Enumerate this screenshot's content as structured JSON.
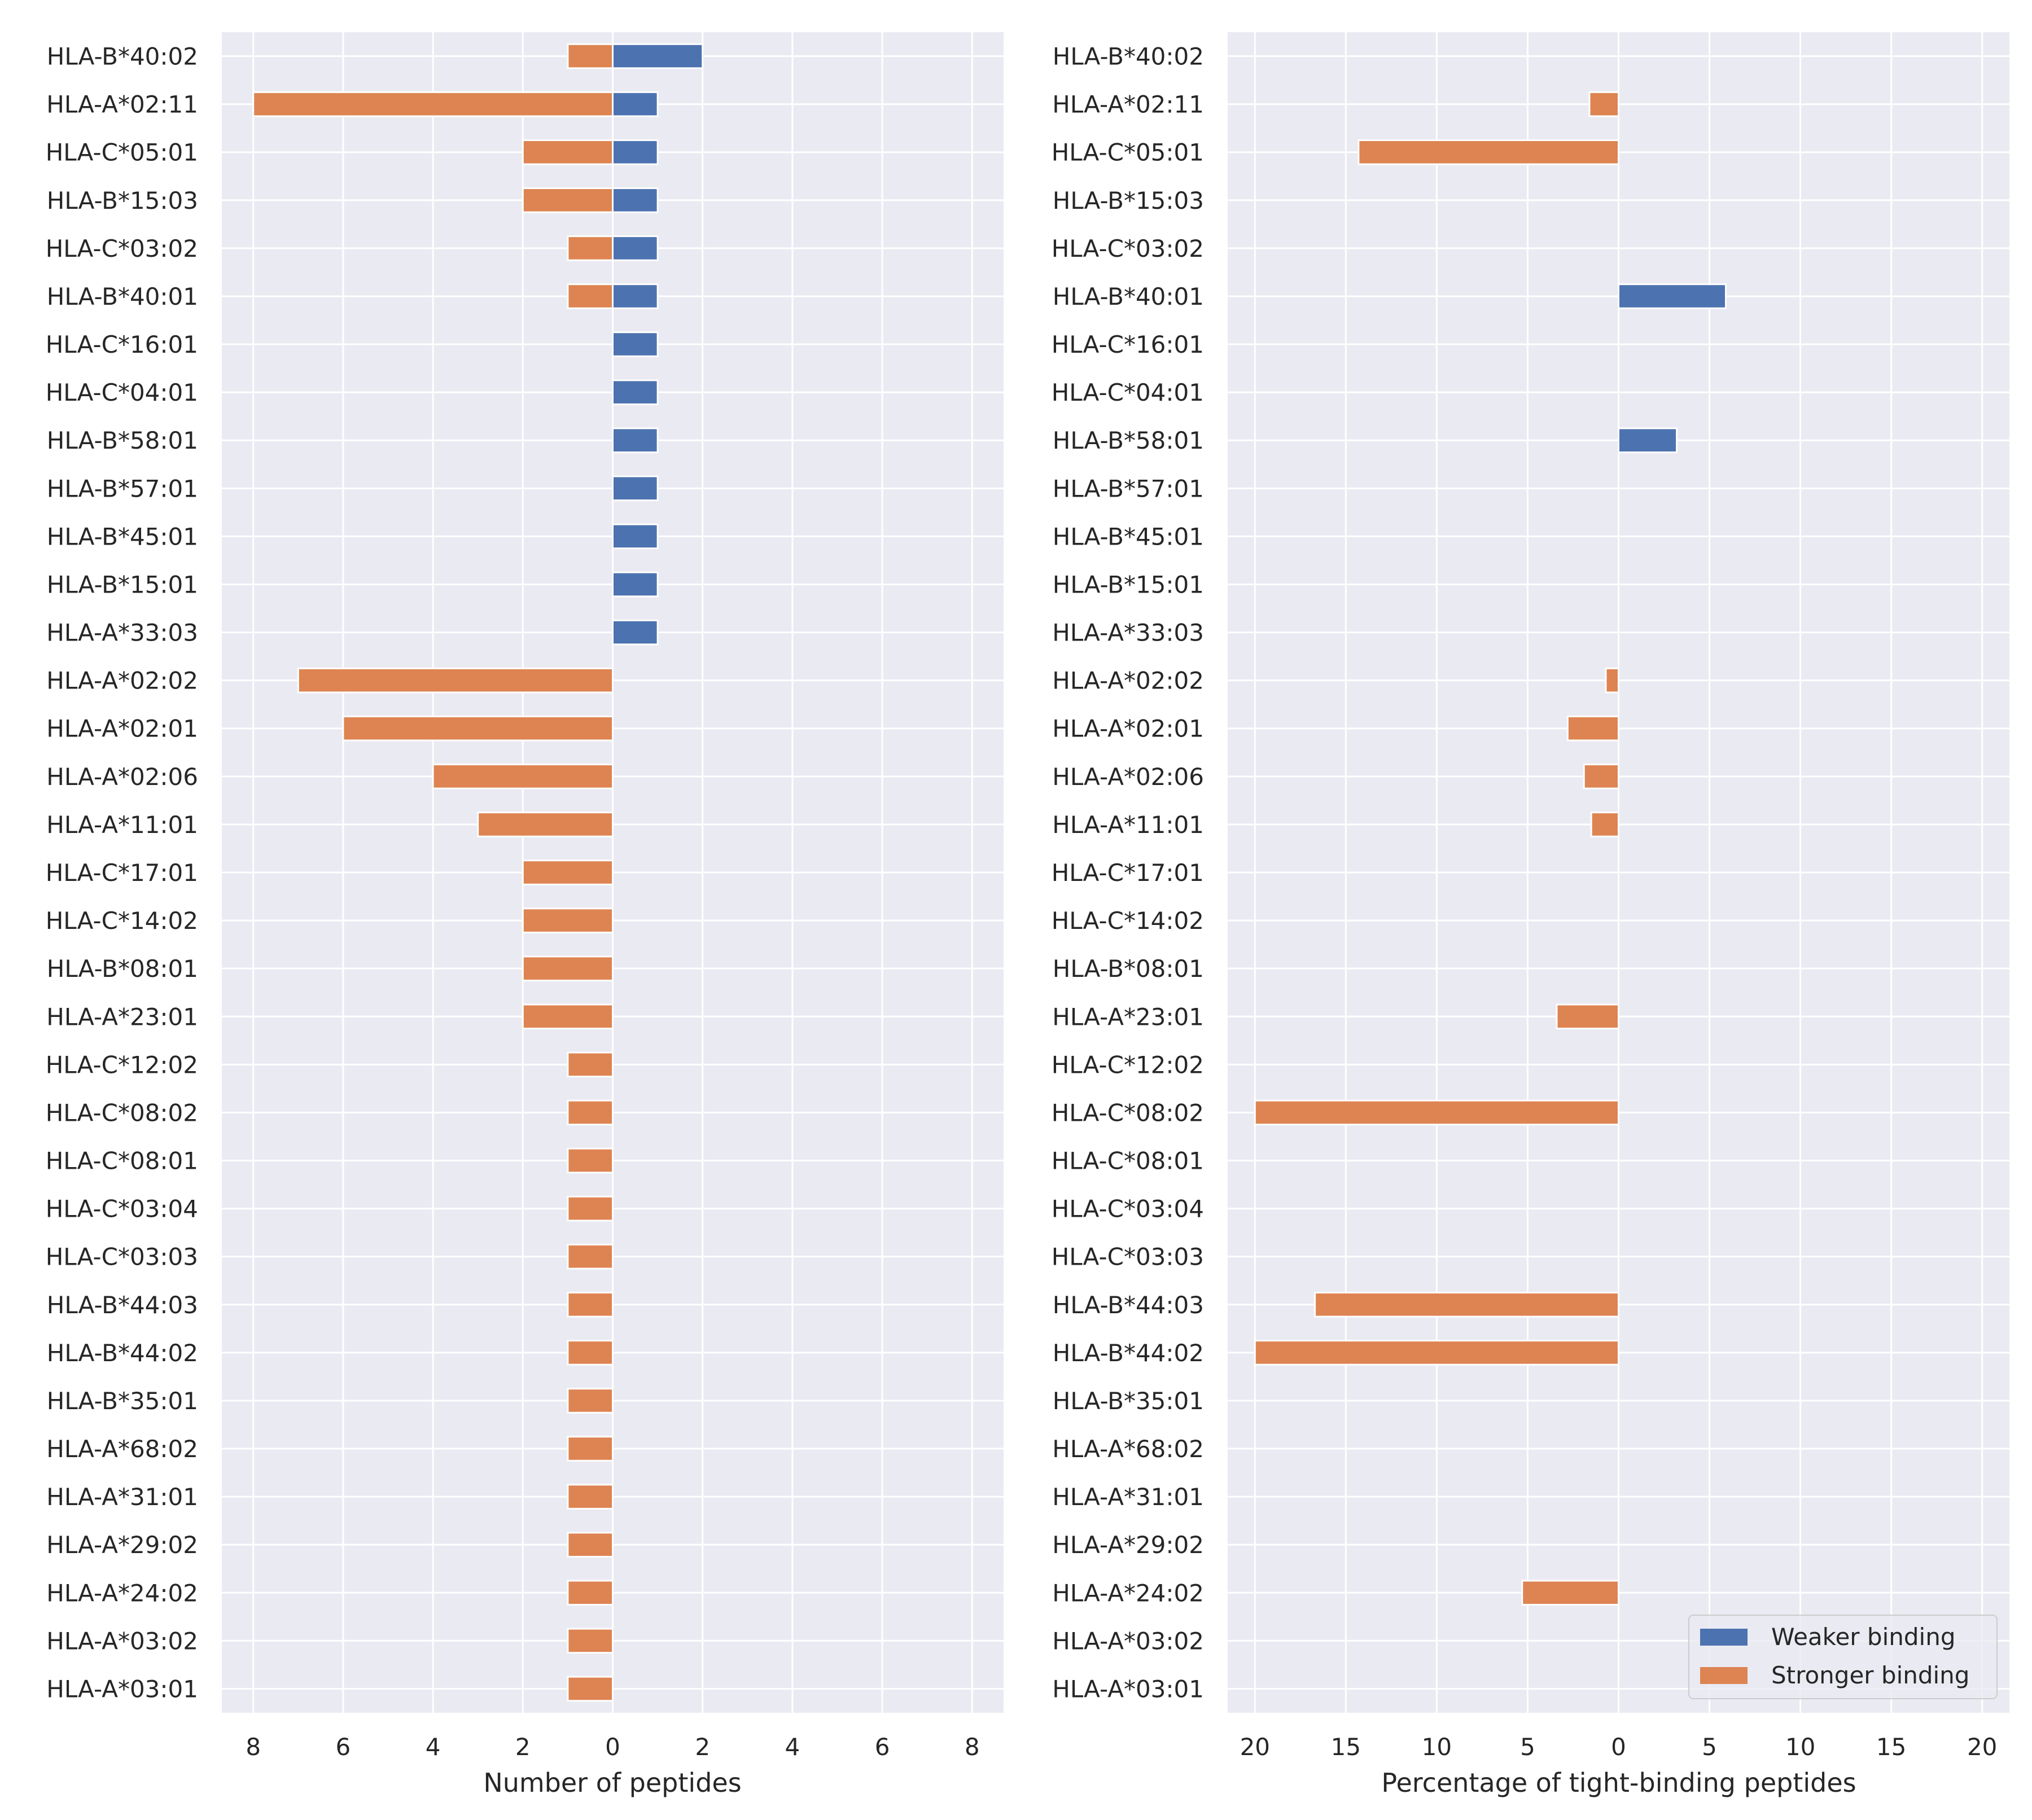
{
  "colors": {
    "weaker": "#4c72b0",
    "stronger": "#dd8452",
    "panel_bg": "#eaeaf2",
    "grid": "#ffffff",
    "text": "#262626"
  },
  "legend": {
    "weaker_label": "Weaker binding",
    "stronger_label": "Stronger binding",
    "placement": "lower-right of right panel"
  },
  "chart_data": [
    {
      "type": "bar",
      "orientation": "horizontal",
      "panel": "left",
      "xlabel": "Number of peptides",
      "xlim": [
        -8.7,
        8.7
      ],
      "xticks": [
        -8,
        -6,
        -4,
        -2,
        0,
        2,
        4,
        6,
        8
      ],
      "xtick_labels": [
        "8",
        "6",
        "4",
        "2",
        "0",
        "2",
        "4",
        "6",
        "8"
      ],
      "grid": true,
      "categories": [
        "HLA-B*40:02",
        "HLA-A*02:11",
        "HLA-C*05:01",
        "HLA-B*15:03",
        "HLA-C*03:02",
        "HLA-B*40:01",
        "HLA-C*16:01",
        "HLA-C*04:01",
        "HLA-B*58:01",
        "HLA-B*57:01",
        "HLA-B*45:01",
        "HLA-B*15:01",
        "HLA-A*33:03",
        "HLA-A*02:02",
        "HLA-A*02:01",
        "HLA-A*02:06",
        "HLA-A*11:01",
        "HLA-C*17:01",
        "HLA-C*14:02",
        "HLA-B*08:01",
        "HLA-A*23:01",
        "HLA-C*12:02",
        "HLA-C*08:02",
        "HLA-C*08:01",
        "HLA-C*03:04",
        "HLA-C*03:03",
        "HLA-B*44:03",
        "HLA-B*44:02",
        "HLA-B*35:01",
        "HLA-A*68:02",
        "HLA-A*31:01",
        "HLA-A*29:02",
        "HLA-A*24:02",
        "HLA-A*03:02",
        "HLA-A*03:01"
      ],
      "series": [
        {
          "name": "Weaker binding",
          "key": "weaker",
          "values": [
            2,
            1,
            1,
            1,
            1,
            1,
            1,
            1,
            1,
            1,
            1,
            1,
            1,
            0,
            0,
            0,
            0,
            0,
            0,
            0,
            0,
            0,
            0,
            0,
            0,
            0,
            0,
            0,
            0,
            0,
            0,
            0,
            0,
            0,
            0
          ]
        },
        {
          "name": "Stronger binding",
          "key": "stronger",
          "values": [
            1,
            8,
            2,
            2,
            1,
            1,
            0,
            0,
            0,
            0,
            0,
            0,
            0,
            7,
            6,
            4,
            3,
            2,
            2,
            2,
            2,
            1,
            1,
            1,
            1,
            1,
            1,
            1,
            1,
            1,
            1,
            1,
            1,
            1,
            1
          ]
        }
      ]
    },
    {
      "type": "bar",
      "orientation": "horizontal",
      "panel": "right",
      "xlabel": "Percentage of tight-binding peptides",
      "xlim": [
        -21.5,
        21.5
      ],
      "xticks": [
        -20,
        -15,
        -10,
        -5,
        0,
        5,
        10,
        15,
        20
      ],
      "xtick_labels": [
        "20",
        "15",
        "10",
        "5",
        "0",
        "5",
        "10",
        "15",
        "20"
      ],
      "grid": true,
      "categories": [
        "HLA-B*40:02",
        "HLA-A*02:11",
        "HLA-C*05:01",
        "HLA-B*15:03",
        "HLA-C*03:02",
        "HLA-B*40:01",
        "HLA-C*16:01",
        "HLA-C*04:01",
        "HLA-B*58:01",
        "HLA-B*57:01",
        "HLA-B*45:01",
        "HLA-B*15:01",
        "HLA-A*33:03",
        "HLA-A*02:02",
        "HLA-A*02:01",
        "HLA-A*02:06",
        "HLA-A*11:01",
        "HLA-C*17:01",
        "HLA-C*14:02",
        "HLA-B*08:01",
        "HLA-A*23:01",
        "HLA-C*12:02",
        "HLA-C*08:02",
        "HLA-C*08:01",
        "HLA-C*03:04",
        "HLA-C*03:03",
        "HLA-B*44:03",
        "HLA-B*44:02",
        "HLA-B*35:01",
        "HLA-A*68:02",
        "HLA-A*31:01",
        "HLA-A*29:02",
        "HLA-A*24:02",
        "HLA-A*03:02",
        "HLA-A*03:01"
      ],
      "series": [
        {
          "name": "Weaker binding",
          "key": "weaker",
          "values": [
            0,
            0,
            0,
            0,
            0,
            5.9,
            0,
            0,
            3.2,
            0,
            0,
            0,
            0,
            0,
            0,
            0,
            0,
            0,
            0,
            0,
            0,
            0,
            0,
            0,
            0,
            0,
            0,
            0,
            0,
            0,
            0,
            0,
            0,
            0,
            0
          ]
        },
        {
          "name": "Stronger binding",
          "key": "stronger",
          "values": [
            0,
            1.6,
            14.3,
            0,
            0,
            0,
            0,
            0,
            0,
            0,
            0,
            0,
            0,
            0.7,
            2.8,
            1.9,
            1.5,
            0,
            0,
            0,
            3.4,
            0,
            20,
            0,
            0,
            0,
            16.7,
            20,
            0,
            0,
            0,
            0,
            5.3,
            0,
            0
          ]
        }
      ]
    }
  ]
}
